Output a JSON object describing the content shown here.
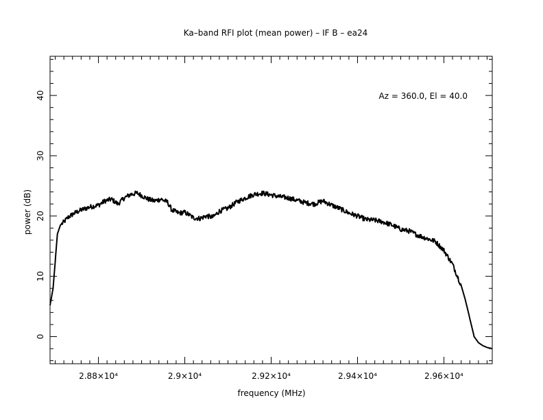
{
  "chart_data": {
    "type": "line",
    "title": "Ka–band RFI plot (mean power) – IF B – ea24",
    "xlabel": "frequency (MHz)",
    "ylabel": "power (dB)",
    "annotation": "Az = 360.0, El = 40.0",
    "xlim": [
      28688,
      29712
    ],
    "ylim": [
      -4.5,
      46.5
    ],
    "x_ticks": [
      {
        "value": 28800,
        "label": "2.88×10⁴"
      },
      {
        "value": 29000,
        "label": "2.9×10⁴"
      },
      {
        "value": 29200,
        "label": "2.92×10⁴"
      },
      {
        "value": 29400,
        "label": "2.94×10⁴"
      },
      {
        "value": 29600,
        "label": "2.96×10⁴"
      }
    ],
    "y_ticks": [
      {
        "value": 0,
        "label": "0"
      },
      {
        "value": 10,
        "label": "10"
      },
      {
        "value": 20,
        "label": "20"
      },
      {
        "value": 30,
        "label": "30"
      },
      {
        "value": 40,
        "label": "40"
      }
    ],
    "line_color": "#000000",
    "series": [
      {
        "x": [
          28688,
          28695,
          28700,
          28705,
          28712,
          28720,
          28730,
          28745,
          28760,
          28780,
          28800,
          28815,
          28830,
          28845,
          28860,
          28875,
          28890,
          28900,
          28915,
          28930,
          28945,
          28960,
          28970,
          28985,
          29000,
          29010,
          29020,
          29035,
          29050,
          29065,
          29080,
          29100,
          29120,
          29140,
          29160,
          29180,
          29200,
          29220,
          29240,
          29260,
          29280,
          29300,
          29320,
          29340,
          29360,
          29380,
          29400,
          29420,
          29440,
          29460,
          29480,
          29500,
          29520,
          29540,
          29560,
          29580,
          29600,
          29620,
          29640,
          29650,
          29660,
          29670,
          29680,
          29690,
          29700,
          29712
        ],
        "y": [
          5.2,
          8.0,
          12.5,
          17.0,
          18.5,
          19.0,
          19.8,
          20.5,
          21.0,
          21.5,
          21.8,
          22.5,
          22.8,
          22.0,
          23.0,
          23.6,
          23.8,
          23.4,
          22.8,
          22.5,
          22.8,
          22.3,
          21.0,
          20.5,
          20.6,
          20.2,
          19.7,
          19.6,
          20.0,
          19.8,
          20.8,
          21.3,
          22.3,
          23.0,
          23.6,
          23.8,
          23.5,
          23.2,
          23.0,
          22.6,
          22.2,
          22.0,
          22.5,
          21.8,
          21.2,
          20.5,
          20.0,
          19.4,
          19.3,
          19.0,
          18.5,
          17.8,
          17.5,
          16.8,
          16.3,
          15.8,
          14.3,
          12.0,
          8.5,
          6.0,
          3.0,
          0.0,
          -1.0,
          -1.5,
          -1.8,
          -2.0
        ]
      }
    ]
  }
}
